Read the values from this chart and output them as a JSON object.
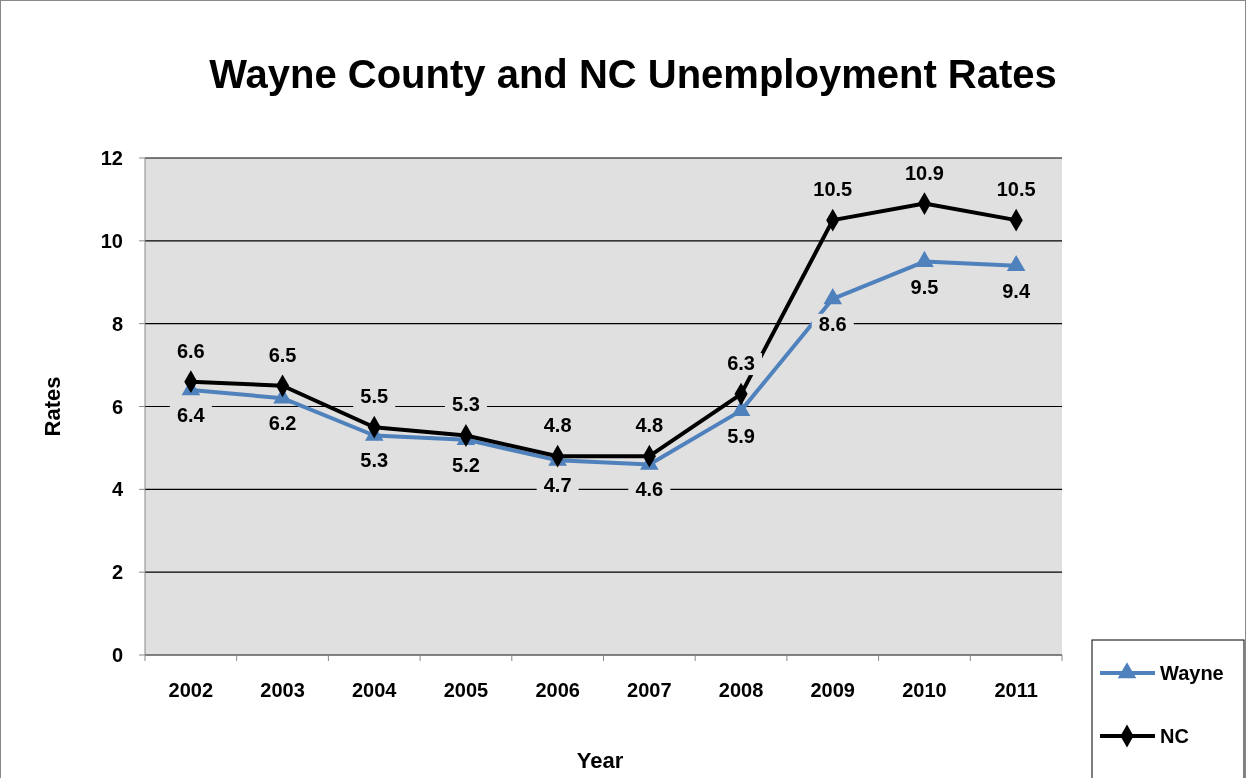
{
  "chart_data": {
    "type": "line",
    "title": "Wayne County and NC Unemployment Rates",
    "xlabel": "Year",
    "ylabel": "Rates",
    "categories": [
      "2002",
      "2003",
      "2004",
      "2005",
      "2006",
      "2007",
      "2008",
      "2009",
      "2010",
      "2011"
    ],
    "series": [
      {
        "name": "Wayne",
        "color": "#4f81bd",
        "marker": "triangle",
        "values": [
          6.4,
          6.2,
          5.3,
          5.2,
          4.7,
          4.6,
          5.9,
          8.6,
          9.5,
          9.4
        ]
      },
      {
        "name": "NC",
        "color": "#000000",
        "marker": "diamond",
        "values": [
          6.6,
          6.5,
          5.5,
          5.3,
          4.8,
          4.8,
          6.3,
          10.5,
          10.9,
          10.5
        ]
      }
    ],
    "ylim": [
      0,
      12
    ],
    "yticks": [
      0,
      2,
      4,
      6,
      8,
      10,
      12
    ],
    "grid": "y",
    "legend": "bottom right",
    "data_labels": true
  }
}
